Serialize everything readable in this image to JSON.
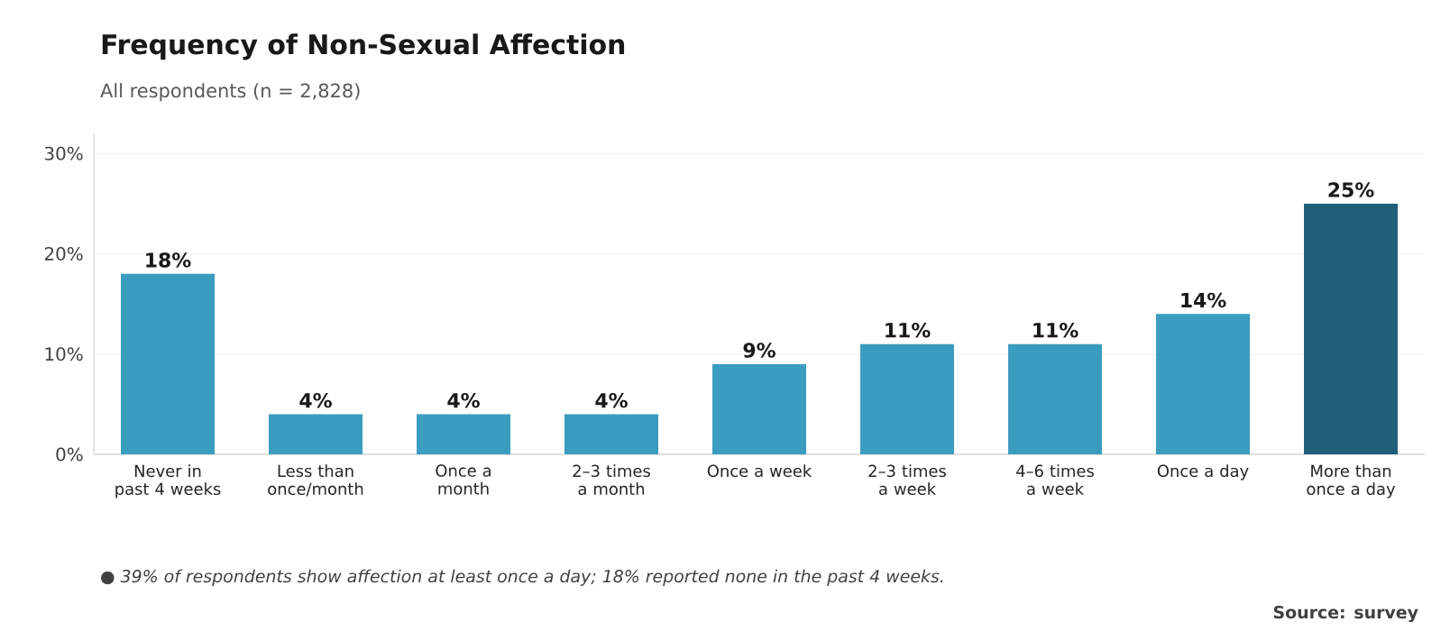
{
  "chart_data": {
    "type": "bar",
    "title": "Frequency of Non-Sexual Affection",
    "subtitle": "All respondents (n = 2,828)",
    "categories": [
      "Never in past 4 weeks",
      "Less than once/month",
      "Once a month",
      "2–3 times a month",
      "Once a week",
      "2–3 times a week",
      "4–6 times a week",
      "Once a day",
      "More than once a day"
    ],
    "values": [
      18,
      4,
      4,
      4,
      9,
      11,
      11,
      14,
      25
    ],
    "value_labels": [
      "18%",
      "4%",
      "4%",
      "4%",
      "9%",
      "11%",
      "11%",
      "14%",
      "25%"
    ],
    "colors": [
      "#3a9dc0",
      "#3a9dc0",
      "#3a9dc0",
      "#3a9dc0",
      "#3a9dc0",
      "#3a9dc0",
      "#3a9dc0",
      "#3a9dc0",
      "#1f5f78"
    ],
    "ylim": [
      0,
      32
    ],
    "yticks": [
      {
        "value": 0,
        "label": "0%"
      },
      {
        "value": 10,
        "label": "10%"
      },
      {
        "value": 20,
        "label": "20%"
      },
      {
        "value": 30,
        "label": "30%"
      }
    ],
    "grid": "y",
    "annotations": [
      "● 39% of respondents show affection at least once a day; 18% reported none in the past 4 weeks.",
      "Source: survey"
    ]
  }
}
